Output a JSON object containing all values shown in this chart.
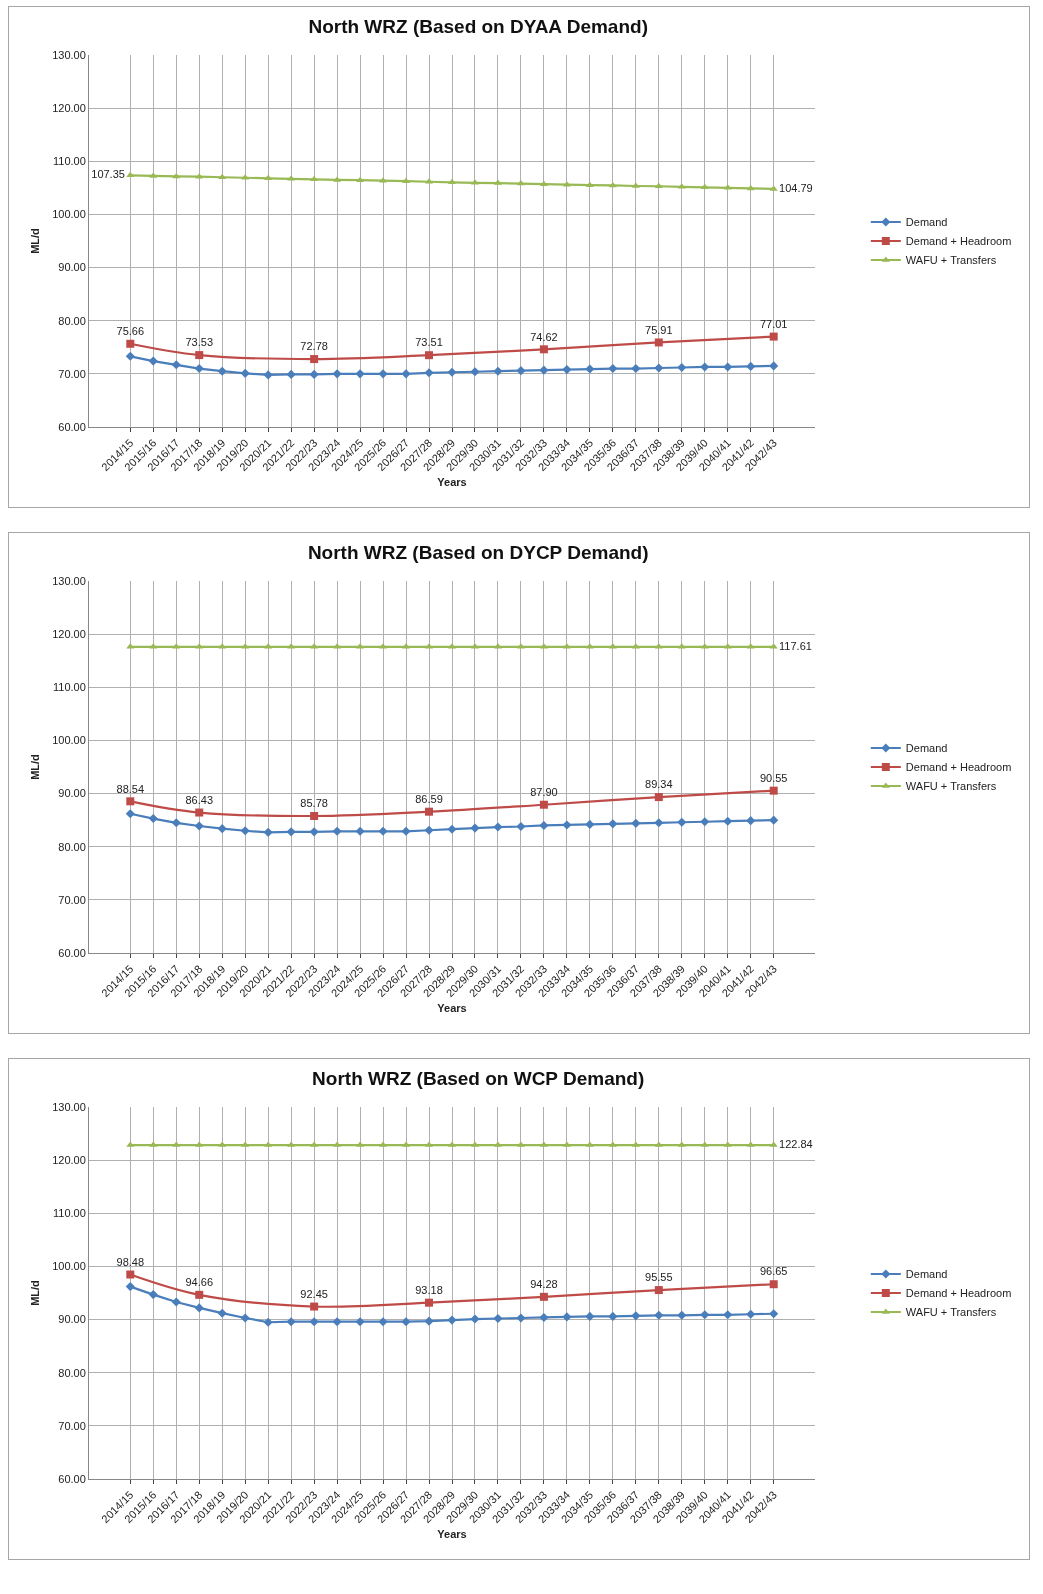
{
  "chart_data": [
    {
      "type": "line",
      "title": "North WRZ (Based on DYAA Demand)",
      "xlabel": "Years",
      "ylabel": "ML/d",
      "categories": [
        "2014/15",
        "2015/16",
        "2016/17",
        "2017/18",
        "2018/19",
        "2019/20",
        "2020/21",
        "2021/22",
        "2022/23",
        "2023/24",
        "2024/25",
        "2025/26",
        "2026/27",
        "2027/28",
        "2028/29",
        "2029/30",
        "2030/31",
        "2031/32",
        "2032/33",
        "2033/34",
        "2034/35",
        "2035/36",
        "2036/37",
        "2037/38",
        "2038/39",
        "2039/40",
        "2040/41",
        "2041/42",
        "2042/43"
      ],
      "ylim": [
        60,
        130
      ],
      "yticks": [
        {
          "value": 60,
          "label": "60.00"
        },
        {
          "value": 70,
          "label": "70.00"
        },
        {
          "value": 80,
          "label": "80.00"
        },
        {
          "value": 90,
          "label": "90.00"
        },
        {
          "value": 100,
          "label": "100.00"
        },
        {
          "value": 110,
          "label": "110.00"
        },
        {
          "value": 120,
          "label": "120.00"
        },
        {
          "value": 130,
          "label": "130.00"
        }
      ],
      "grid": true,
      "legend": "right",
      "line_style": "solid",
      "series": [
        {
          "name": "Demand",
          "color": "#4a7ebb",
          "marker": "diamond",
          "values": [
            73.3,
            72.4,
            71.7,
            71.0,
            70.5,
            70.1,
            69.8,
            69.9,
            69.9,
            70.0,
            70.0,
            70.0,
            70.0,
            70.2,
            70.3,
            70.4,
            70.5,
            70.6,
            70.7,
            70.8,
            70.9,
            71.0,
            71.0,
            71.1,
            71.2,
            71.3,
            71.3,
            71.4,
            71.5
          ]
        },
        {
          "name": "Demand + Headroom",
          "color": "#be4b48",
          "marker": "square",
          "x": [
            "2014/15",
            "2017/18",
            "2022/23",
            "2027/28",
            "2032/33",
            "2037/38",
            "2042/43"
          ],
          "values": [
            75.66,
            73.53,
            72.78,
            73.51,
            74.62,
            75.91,
            77.01
          ],
          "value_labels": [
            "75.66",
            "73.53",
            "72.78",
            "73.51",
            "74.62",
            "75.91",
            "77.01"
          ]
        },
        {
          "name": "WAFU + Transfers",
          "color": "#98b954",
          "marker": "triangle",
          "values": [
            107.35,
            107.25,
            107.15,
            107.1,
            107.0,
            106.9,
            106.8,
            106.7,
            106.6,
            106.5,
            106.45,
            106.35,
            106.25,
            106.15,
            106.05,
            105.95,
            105.9,
            105.8,
            105.7,
            105.6,
            105.5,
            105.45,
            105.35,
            105.3,
            105.2,
            105.1,
            105.0,
            104.9,
            104.79
          ],
          "value_labels": [
            "107.35",
            null,
            null,
            null,
            null,
            null,
            null,
            null,
            null,
            null,
            null,
            null,
            null,
            null,
            null,
            null,
            null,
            null,
            null,
            null,
            null,
            null,
            null,
            null,
            null,
            null,
            null,
            null,
            "104.79"
          ]
        }
      ]
    },
    {
      "type": "line",
      "title": "North WRZ (Based on DYCP Demand)",
      "xlabel": "Years",
      "ylabel": "ML/d",
      "categories": [
        "2014/15",
        "2015/16",
        "2016/17",
        "2017/18",
        "2018/19",
        "2019/20",
        "2020/21",
        "2021/22",
        "2022/23",
        "2023/24",
        "2024/25",
        "2025/26",
        "2026/27",
        "2027/28",
        "2028/29",
        "2029/30",
        "2030/31",
        "2031/32",
        "2032/33",
        "2033/34",
        "2034/35",
        "2035/36",
        "2036/37",
        "2037/38",
        "2038/39",
        "2039/40",
        "2040/41",
        "2041/42",
        "2042/43"
      ],
      "ylim": [
        60,
        130
      ],
      "yticks": [
        {
          "value": 60,
          "label": "60.00"
        },
        {
          "value": 70,
          "label": "70.00"
        },
        {
          "value": 80,
          "label": "80.00"
        },
        {
          "value": 90,
          "label": "90.00"
        },
        {
          "value": 100,
          "label": "100.00"
        },
        {
          "value": 110,
          "label": "110.00"
        },
        {
          "value": 120,
          "label": "120.00"
        },
        {
          "value": 130,
          "label": "130.00"
        }
      ],
      "grid": true,
      "legend": "right",
      "line_style": "solid",
      "series": [
        {
          "name": "Demand",
          "color": "#4a7ebb",
          "marker": "diamond",
          "values": [
            86.2,
            85.3,
            84.5,
            83.9,
            83.4,
            83.0,
            82.7,
            82.8,
            82.8,
            82.9,
            82.9,
            82.9,
            82.9,
            83.1,
            83.3,
            83.5,
            83.7,
            83.8,
            84.0,
            84.1,
            84.2,
            84.3,
            84.4,
            84.5,
            84.6,
            84.7,
            84.8,
            84.9,
            85.0
          ]
        },
        {
          "name": "Demand + Headroom",
          "color": "#be4b48",
          "marker": "square",
          "x": [
            "2014/15",
            "2017/18",
            "2022/23",
            "2027/28",
            "2032/33",
            "2037/38",
            "2042/43"
          ],
          "values": [
            88.54,
            86.43,
            85.78,
            86.59,
            87.9,
            89.34,
            90.55
          ],
          "value_labels": [
            "88.54",
            "86.43",
            "85.78",
            "86.59",
            "87.90",
            "89.34",
            "90.55"
          ]
        },
        {
          "name": "WAFU + Transfers",
          "color": "#98b954",
          "marker": "triangle",
          "values": [
            117.61,
            117.61,
            117.61,
            117.61,
            117.61,
            117.61,
            117.61,
            117.61,
            117.61,
            117.61,
            117.61,
            117.61,
            117.61,
            117.61,
            117.61,
            117.61,
            117.61,
            117.61,
            117.61,
            117.61,
            117.61,
            117.61,
            117.61,
            117.61,
            117.61,
            117.61,
            117.61,
            117.61,
            117.61
          ],
          "value_labels": [
            null,
            null,
            null,
            null,
            null,
            null,
            null,
            null,
            null,
            null,
            null,
            null,
            null,
            null,
            null,
            null,
            null,
            null,
            null,
            null,
            null,
            null,
            null,
            null,
            null,
            null,
            null,
            null,
            "117.61"
          ]
        }
      ]
    },
    {
      "type": "line",
      "title": "North WRZ (Based on WCP Demand)",
      "xlabel": "Years",
      "ylabel": "ML/d",
      "categories": [
        "2014/15",
        "2015/16",
        "2016/17",
        "2017/18",
        "2018/19",
        "2019/20",
        "2020/21",
        "2021/22",
        "2022/23",
        "2023/24",
        "2024/25",
        "2025/26",
        "2026/27",
        "2027/28",
        "2028/29",
        "2029/30",
        "2030/31",
        "2031/32",
        "2032/33",
        "2033/34",
        "2034/35",
        "2035/36",
        "2036/37",
        "2037/38",
        "2038/39",
        "2039/40",
        "2040/41",
        "2041/42",
        "2042/43"
      ],
      "ylim": [
        60,
        130
      ],
      "yticks": [
        {
          "value": 60,
          "label": "60.00"
        },
        {
          "value": 70,
          "label": "70.00"
        },
        {
          "value": 80,
          "label": "80.00"
        },
        {
          "value": 90,
          "label": "90.00"
        },
        {
          "value": 100,
          "label": "100.00"
        },
        {
          "value": 110,
          "label": "110.00"
        },
        {
          "value": 120,
          "label": "120.00"
        },
        {
          "value": 130,
          "label": "130.00"
        }
      ],
      "grid": true,
      "legend": "right",
      "line_style": "solid",
      "series": [
        {
          "name": "Demand",
          "color": "#4a7ebb",
          "marker": "diamond",
          "values": [
            96.2,
            94.7,
            93.3,
            92.2,
            91.2,
            90.3,
            89.5,
            89.6,
            89.6,
            89.6,
            89.6,
            89.6,
            89.6,
            89.7,
            89.9,
            90.1,
            90.2,
            90.3,
            90.4,
            90.5,
            90.6,
            90.6,
            90.7,
            90.8,
            90.8,
            90.9,
            90.9,
            91.0,
            91.1
          ]
        },
        {
          "name": "Demand + Headroom",
          "color": "#be4b48",
          "marker": "square",
          "x": [
            "2014/15",
            "2017/18",
            "2022/23",
            "2027/28",
            "2032/33",
            "2037/38",
            "2042/43"
          ],
          "values": [
            98.48,
            94.66,
            92.45,
            93.18,
            94.28,
            95.55,
            96.65
          ],
          "value_labels": [
            "98.48",
            "94.66",
            "92.45",
            "93.18",
            "94.28",
            "95.55",
            "96.65"
          ]
        },
        {
          "name": "WAFU + Transfers",
          "color": "#98b954",
          "marker": "triangle",
          "values": [
            122.84,
            122.84,
            122.84,
            122.84,
            122.84,
            122.84,
            122.84,
            122.84,
            122.84,
            122.84,
            122.84,
            122.84,
            122.84,
            122.84,
            122.84,
            122.84,
            122.84,
            122.84,
            122.84,
            122.84,
            122.84,
            122.84,
            122.84,
            122.84,
            122.84,
            122.84,
            122.84,
            122.84,
            122.84
          ],
          "value_labels": [
            null,
            null,
            null,
            null,
            null,
            null,
            null,
            null,
            null,
            null,
            null,
            null,
            null,
            null,
            null,
            null,
            null,
            null,
            null,
            null,
            null,
            null,
            null,
            null,
            null,
            null,
            null,
            null,
            "122.84"
          ]
        }
      ]
    }
  ]
}
